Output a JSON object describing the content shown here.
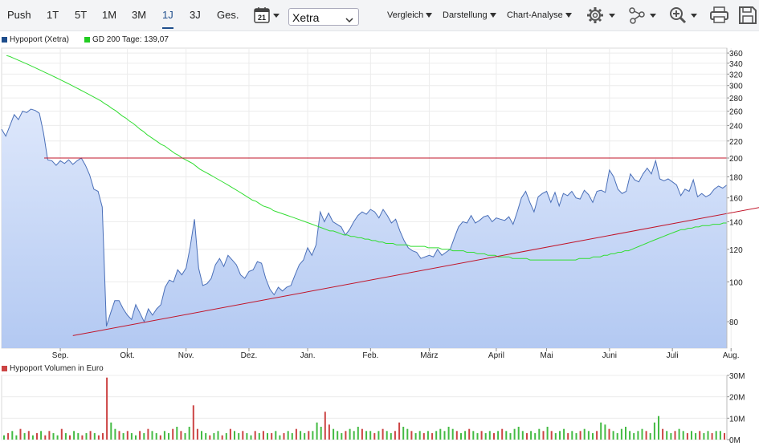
{
  "toolbar": {
    "range_buttons": [
      "Push",
      "1T",
      "5T",
      "1M",
      "3M",
      "1J",
      "3J",
      "Ges."
    ],
    "active_range": "1J",
    "calendar_day": "21",
    "exchange": "Xetra",
    "menus": [
      "Vergleich",
      "Darstellung",
      "Chart-Analyse"
    ],
    "icons": [
      "settings-icon",
      "share-network-icon",
      "zoom-in-icon",
      "print-icon",
      "save-icon"
    ]
  },
  "legend": {
    "price": "Hypoport (Xetra)",
    "sma": "GD 200 Tage: 139,07",
    "volume": "Hypoport Volumen in Euro"
  },
  "colors": {
    "price_line": "#4a6fb8",
    "price_fill_top": "#dde7fb",
    "price_fill_bottom": "#b3c9f2",
    "sma": "#33dd33",
    "trendline": "#c0152a",
    "volume_up": "#44bb44",
    "volume_down": "#cc4444",
    "legend_price": "#1f4e8c",
    "legend_sma": "#22cc22",
    "legend_volume": "#cc4444"
  },
  "chart_data": [
    {
      "type": "area",
      "yscale": "log",
      "ylim": [
        69,
        370
      ],
      "y_ticks": [
        80,
        100,
        120,
        140,
        160,
        180,
        200,
        220,
        240,
        260,
        280,
        300,
        320,
        340,
        360
      ],
      "x_month_labels": [
        "Sep.",
        "Okt.",
        "Nov.",
        "Dez.",
        "Jan.",
        "Feb.",
        "März",
        "April",
        "Mai",
        "Juni",
        "Juli",
        "Aug."
      ],
      "x_month_label_index": [
        14,
        30,
        44,
        59,
        73,
        88,
        102,
        118,
        130,
        145,
        160,
        174
      ],
      "series": [
        {
          "name": "Hypoport (Xetra)",
          "values": [
            235,
            226,
            240,
            255,
            248,
            260,
            258,
            263,
            261,
            257,
            230,
            198,
            197,
            192,
            197,
            194,
            198,
            193,
            197,
            200,
            192,
            182,
            168,
            166,
            152,
            78,
            84,
            90,
            90,
            86,
            83,
            81,
            88,
            84,
            80,
            86,
            83,
            86,
            88,
            97,
            101,
            100,
            107,
            104,
            108,
            122,
            142,
            108,
            98,
            99,
            102,
            110,
            114,
            109,
            116,
            113,
            110,
            104,
            102,
            106,
            107,
            112,
            111,
            102,
            96,
            93,
            97,
            95,
            97,
            98,
            104,
            110,
            113,
            121,
            116,
            123,
            148,
            140,
            147,
            140,
            138,
            136,
            130,
            134,
            140,
            145,
            148,
            146,
            150,
            148,
            143,
            150,
            145,
            139,
            142,
            133,
            126,
            121,
            119,
            118,
            114,
            115,
            116,
            115,
            120,
            116,
            118,
            120,
            128,
            136,
            140,
            139,
            145,
            139,
            141,
            144,
            145,
            140,
            143,
            142,
            141,
            144,
            138,
            148,
            160,
            166,
            156,
            148,
            161,
            164,
            166,
            156,
            165,
            153,
            164,
            162,
            166,
            160,
            159,
            167,
            163,
            156,
            166,
            167,
            165,
            187,
            180,
            168,
            164,
            166,
            183,
            177,
            175,
            183,
            189,
            183,
            197,
            178,
            176,
            178,
            175,
            172,
            162,
            168,
            166,
            177,
            161,
            164,
            161,
            163,
            168,
            171,
            169,
            172
          ],
          "color": "#4a6fb8"
        },
        {
          "name": "GD 200 Tage",
          "values": [
            355,
            353,
            350,
            347,
            344,
            341,
            338,
            335,
            332,
            329,
            326,
            323,
            320,
            317,
            314,
            311,
            308,
            305,
            302,
            299,
            296,
            293,
            290,
            287,
            284,
            281,
            278,
            275,
            271,
            268,
            264,
            261,
            257,
            253,
            250,
            246,
            243,
            239,
            235,
            232,
            228,
            225,
            222,
            219,
            216,
            214,
            211,
            208,
            205,
            203,
            200,
            198,
            196,
            194,
            191,
            188,
            186,
            184,
            182,
            180,
            178,
            176,
            174,
            172,
            170,
            168,
            166,
            164,
            162,
            160,
            158,
            157,
            155,
            153,
            152,
            151,
            149,
            148,
            147,
            146,
            145,
            144,
            143,
            142,
            141,
            140,
            139,
            138,
            137,
            136,
            135,
            134,
            133,
            133,
            132,
            131,
            130,
            130,
            129,
            129,
            128,
            128,
            127,
            127,
            126,
            126,
            125,
            125,
            124,
            124,
            124,
            123,
            123,
            123,
            123,
            122,
            122,
            122,
            122,
            122,
            121,
            121,
            121,
            121,
            120,
            120,
            120,
            119,
            119,
            119,
            119,
            118,
            118,
            118,
            117,
            117,
            117,
            116,
            116,
            116,
            115,
            115,
            115,
            115,
            114,
            114,
            114,
            114,
            114,
            113,
            113,
            113,
            113,
            113,
            113,
            113,
            113,
            113,
            113,
            113,
            113,
            113,
            113,
            114,
            114,
            114,
            114,
            115,
            115,
            115,
            116,
            116,
            117,
            117,
            118,
            118,
            119,
            119,
            120,
            121,
            122,
            123,
            124,
            125,
            126,
            127,
            128,
            129,
            130,
            131,
            132,
            133,
            134,
            134,
            135,
            135,
            136,
            136,
            137,
            137,
            137,
            138,
            138,
            138,
            139,
            139
          ],
          "color": "#33dd33"
        }
      ],
      "horizontal_lines": [
        {
          "value": 200,
          "color": "#c0152a"
        }
      ],
      "trendlines": [
        {
          "from": [
            17,
            74
          ],
          "to": [
            193,
            160
          ],
          "color": "#c0152a"
        }
      ]
    },
    {
      "type": "bar",
      "ylim": [
        0,
        30
      ],
      "y_ticks": [
        0,
        10,
        20,
        30
      ],
      "y_tick_labels": [
        "0M",
        "10M",
        "20M",
        "30M"
      ],
      "series": [
        {
          "name": "Hypoport Volumen in Euro",
          "values": [
            2,
            3,
            4,
            2,
            5,
            3,
            4,
            2,
            3,
            4,
            2,
            4,
            3,
            2,
            5,
            3,
            2,
            4,
            3,
            2,
            3,
            4,
            3,
            2,
            3,
            29,
            8,
            5,
            4,
            3,
            4,
            3,
            2,
            4,
            3,
            5,
            4,
            3,
            2,
            4,
            3,
            5,
            6,
            4,
            3,
            6,
            16,
            5,
            4,
            3,
            2,
            3,
            4,
            2,
            3,
            5,
            4,
            3,
            4,
            3,
            2,
            4,
            3,
            4,
            3,
            3,
            4,
            2,
            3,
            4,
            3,
            5,
            4,
            3,
            4,
            4,
            8,
            6,
            13,
            7,
            5,
            4,
            3,
            4,
            5,
            4,
            6,
            5,
            4,
            4,
            3,
            4,
            5,
            4,
            3,
            4,
            8,
            6,
            5,
            4,
            3,
            4,
            3,
            4,
            3,
            4,
            5,
            4,
            6,
            5,
            4,
            3,
            4,
            5,
            4,
            3,
            4,
            3,
            4,
            3,
            4,
            5,
            4,
            3,
            5,
            6,
            4,
            3,
            4,
            3,
            5,
            4,
            6,
            4,
            3,
            4,
            5,
            3,
            4,
            3,
            4,
            5,
            4,
            3,
            4,
            8,
            7,
            5,
            4,
            3,
            5,
            6,
            4,
            3,
            4,
            5,
            4,
            3,
            8,
            11,
            5,
            4,
            3,
            4,
            5,
            4,
            3,
            4,
            3,
            4,
            3,
            4,
            3,
            4,
            4,
            3
          ],
          "up": [
            1,
            0,
            1,
            1,
            0,
            1,
            0,
            1,
            0,
            1,
            0,
            0,
            1,
            1,
            0,
            1,
            0,
            1,
            1,
            0,
            1,
            0,
            1,
            0,
            0,
            0,
            1,
            1,
            0,
            1,
            0,
            1,
            1,
            0,
            1,
            0,
            1,
            1,
            0,
            1,
            1,
            0,
            1,
            0,
            1,
            1,
            0,
            0,
            1,
            1,
            0,
            1,
            1,
            0,
            1,
            0,
            1,
            1,
            0,
            1,
            1,
            0,
            1,
            0,
            1,
            0,
            1,
            1,
            0,
            1,
            1,
            0,
            1,
            1,
            0,
            1,
            1,
            1,
            0,
            0,
            1,
            1,
            1,
            0,
            1,
            1,
            1,
            0,
            1,
            1,
            0,
            1,
            0,
            1,
            1,
            0,
            0,
            1,
            1,
            0,
            1,
            1,
            0,
            1,
            0,
            1,
            1,
            1,
            1,
            1,
            0,
            1,
            1,
            0,
            1,
            1,
            0,
            1,
            1,
            0,
            1,
            0,
            1,
            1,
            1,
            1,
            1,
            0,
            1,
            1,
            1,
            0,
            1,
            0,
            1,
            1,
            1,
            0,
            1,
            1,
            0,
            1,
            1,
            1,
            0,
            1,
            1,
            0,
            1,
            1,
            1,
            1,
            1,
            1,
            1,
            1,
            0,
            1,
            1,
            1,
            0,
            1,
            1,
            0,
            1,
            1,
            0,
            1,
            1,
            0,
            1,
            1,
            0,
            1,
            1
          ]
        }
      ]
    }
  ]
}
